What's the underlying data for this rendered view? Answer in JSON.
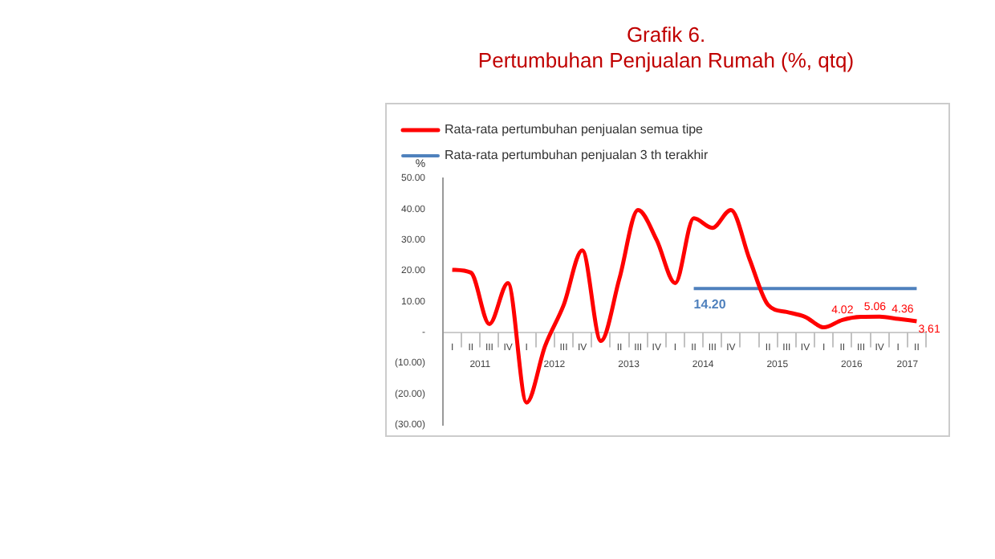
{
  "chart_data": {
    "type": "line",
    "title": "Grafik 6.",
    "subtitle": "Pertumbuhan Penjualan Rumah (%, qtq)",
    "ylabel": "%",
    "categories": [
      "I",
      "II",
      "III",
      "IV",
      "I",
      null,
      "III",
      "IV",
      null,
      "II",
      "III",
      "IV",
      "I",
      "II",
      "III",
      "IV",
      null,
      "II",
      "III",
      "IV",
      "I",
      "II",
      "III",
      "IV",
      "I",
      "II"
    ],
    "annotations": [
      "2011",
      "2012",
      "2013",
      "2014",
      "2015",
      "2016",
      "2017"
    ],
    "series": [
      {
        "name": "Rata-rata pertumbuhan penjualan semua tipe",
        "color": "#ff0000",
        "values": [
          20.3,
          19.4,
          2.7,
          16,
          -22.8,
          -4.4,
          8.9,
          26.6,
          -2.8,
          17.5,
          39.7,
          30,
          16,
          37,
          33.9,
          39.7,
          23.8,
          8.9,
          6.6,
          5,
          1.6,
          4.02,
          5,
          5.06,
          4.36,
          3.61
        ],
        "value_labels": [
          null,
          null,
          null,
          null,
          null,
          null,
          null,
          null,
          null,
          null,
          null,
          null,
          null,
          null,
          null,
          null,
          null,
          null,
          null,
          null,
          null,
          "4.02",
          null,
          "5.06",
          "4.36",
          "3.61"
        ]
      },
      {
        "name": "Rata-rata pertumbuhan penjualan 3 th terakhir",
        "color": "#4f81bd",
        "values": [
          null,
          null,
          null,
          null,
          null,
          null,
          null,
          null,
          null,
          null,
          null,
          null,
          null,
          14.2,
          14.2,
          14.2,
          14.2,
          14.2,
          14.2,
          14.2,
          14.2,
          14.2,
          14.2,
          14.2,
          14.2,
          14.2
        ],
        "value_labels": [
          null,
          null,
          null,
          null,
          null,
          null,
          null,
          null,
          null,
          null,
          null,
          null,
          null,
          "14.20",
          null,
          null,
          null,
          null,
          null,
          null,
          null,
          null,
          null,
          null,
          null,
          null
        ]
      }
    ],
    "ylim": [
      -30,
      50
    ],
    "yticks": [
      {
        "value": 50,
        "label": "50.00"
      },
      {
        "value": 40,
        "label": "40.00"
      },
      {
        "value": 30,
        "label": "30.00"
      },
      {
        "value": 20,
        "label": "20.00"
      },
      {
        "value": 10,
        "label": "10.00"
      },
      {
        "value": 0,
        "label": "-"
      },
      {
        "value": -10,
        "label": "(10.00)"
      },
      {
        "value": -20,
        "label": "(20.00)"
      },
      {
        "value": -30,
        "label": "(30.00)"
      }
    ],
    "grid": false,
    "legend": "top left",
    "marker": "none",
    "line_style": "solid"
  }
}
